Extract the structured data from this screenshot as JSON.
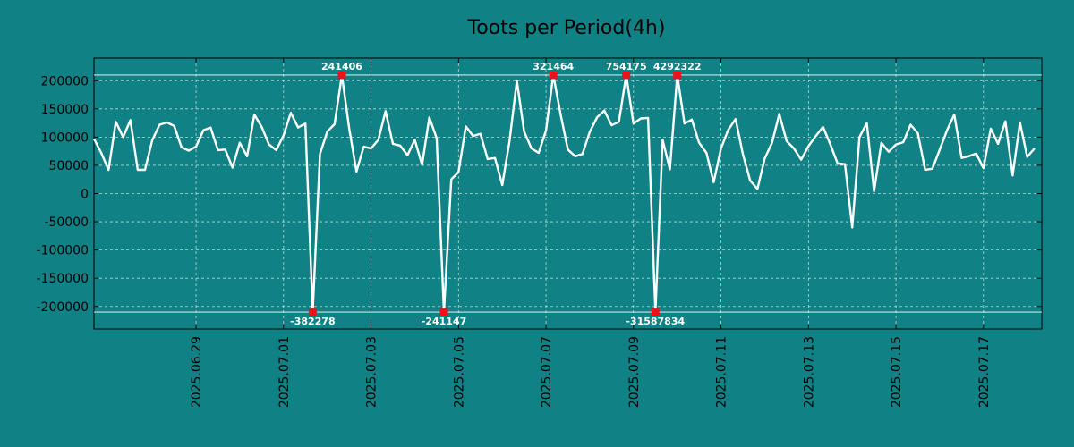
{
  "chart_data": {
    "type": "line",
    "title": "Toots per Period(4h)",
    "xlabel": "",
    "ylabel": "",
    "ylim": [
      -240000,
      240000
    ],
    "grid": true,
    "colors": {
      "background": "#108286",
      "line": "#ffffff",
      "marker": "#e8141c",
      "grid": "#b9d6d8",
      "axis": "#000000"
    },
    "y_ticks": [
      {
        "value": 200000,
        "label": "200000"
      },
      {
        "value": 150000,
        "label": "150000"
      },
      {
        "value": 100000,
        "label": "100000"
      },
      {
        "value": 50000,
        "label": "50000"
      },
      {
        "value": 0,
        "label": "0"
      },
      {
        "value": -50000,
        "label": "-50000"
      },
      {
        "value": -100000,
        "label": "-100000"
      },
      {
        "value": -150000,
        "label": "-150000"
      },
      {
        "value": -200000,
        "label": "-200000"
      }
    ],
    "x_ticks": [
      {
        "index": 14,
        "label": "2025.06.29"
      },
      {
        "index": 26,
        "label": "2025.07.01"
      },
      {
        "index": 38,
        "label": "2025.07.03"
      },
      {
        "index": 50,
        "label": "2025.07.05"
      },
      {
        "index": 62,
        "label": "2025.07.07"
      },
      {
        "index": 74,
        "label": "2025.07.09"
      },
      {
        "index": 86,
        "label": "2025.07.11"
      },
      {
        "index": 98,
        "label": "2025.07.13"
      },
      {
        "index": 110,
        "label": "2025.07.15"
      },
      {
        "index": 122,
        "label": "2025.07.17"
      }
    ],
    "x_range": [
      0,
      130
    ],
    "clip_levels": [
      210000,
      -210000
    ],
    "values": [
      97000,
      72000,
      42000,
      127000,
      100000,
      130000,
      42000,
      42000,
      95000,
      122000,
      126000,
      120000,
      82000,
      76000,
      83000,
      112000,
      117000,
      77000,
      78000,
      46000,
      90000,
      66000,
      140000,
      118000,
      87000,
      77000,
      103000,
      143000,
      117000,
      124000,
      -210000,
      70000,
      110000,
      123000,
      210000,
      116000,
      39000,
      83000,
      80000,
      95000,
      146000,
      88000,
      85000,
      68000,
      95000,
      51000,
      135000,
      98000,
      -210000,
      25000,
      38000,
      119000,
      102000,
      106000,
      61000,
      63000,
      15000,
      93000,
      200000,
      110000,
      80000,
      72000,
      112000,
      210000,
      140000,
      78000,
      66000,
      70000,
      109000,
      135000,
      147000,
      121000,
      127000,
      210000,
      124000,
      133000,
      134000,
      -210000,
      95000,
      43000,
      210000,
      124000,
      131000,
      90000,
      72000,
      20000,
      80000,
      113000,
      132000,
      70000,
      23000,
      8000,
      62000,
      90000,
      141000,
      93000,
      80000,
      60000,
      84000,
      102000,
      118000,
      87000,
      53000,
      52000,
      -60000,
      100000,
      125000,
      4000,
      90000,
      74000,
      87000,
      91000,
      122000,
      107000,
      42000,
      44000,
      78000,
      112000,
      140000,
      63000,
      66000,
      71000,
      45000,
      115000,
      88000,
      128000,
      32000,
      126000,
      65000,
      80000
    ],
    "annotations": [
      {
        "index": 30,
        "label": "-382278",
        "position": "below"
      },
      {
        "index": 34,
        "label": "241406",
        "position": "above"
      },
      {
        "index": 48,
        "label": "-241147",
        "position": "below"
      },
      {
        "index": 63,
        "label": "321464",
        "position": "above"
      },
      {
        "index": 73,
        "label": "754175",
        "position": "above"
      },
      {
        "index": 77,
        "label": "-31587834",
        "position": "below"
      },
      {
        "index": 80,
        "label": "4292322",
        "position": "above"
      }
    ]
  }
}
